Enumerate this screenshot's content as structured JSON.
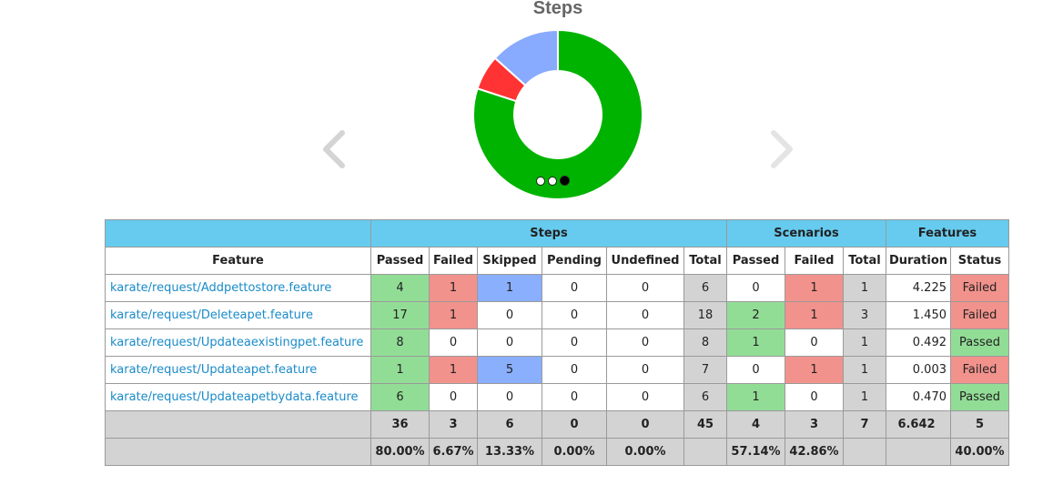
{
  "chart": {
    "title": "Steps",
    "carousel_dots": 3,
    "active_dot": 2
  },
  "chart_data": {
    "type": "pie",
    "title": "Steps",
    "slices": [
      {
        "label": "Passed",
        "value": 36,
        "color": "#00b300"
      },
      {
        "label": "Failed",
        "value": 3,
        "color": "#ff3333"
      },
      {
        "label": "Skipped",
        "value": 6,
        "color": "#88aaff"
      }
    ]
  },
  "table": {
    "groups": {
      "steps": "Steps",
      "scenarios": "Scenarios",
      "features": "Features"
    },
    "headers": {
      "feature": "Feature",
      "passed": "Passed",
      "failed": "Failed",
      "skipped": "Skipped",
      "pending": "Pending",
      "undefined": "Undefined",
      "total": "Total",
      "sc_passed": "Passed",
      "sc_failed": "Failed",
      "sc_total": "Total",
      "duration": "Duration",
      "status": "Status"
    },
    "rows": [
      {
        "feature": "karate/request/Addpettostore.feature",
        "passed": "4",
        "failed": "1",
        "skipped": "1",
        "pending": "0",
        "undefined": "0",
        "total": "6",
        "sc_passed": "0",
        "sc_failed": "1",
        "sc_total": "1",
        "duration": "4.225",
        "status": "Failed"
      },
      {
        "feature": "karate/request/Deleteapet.feature",
        "passed": "17",
        "failed": "1",
        "skipped": "0",
        "pending": "0",
        "undefined": "0",
        "total": "18",
        "sc_passed": "2",
        "sc_failed": "1",
        "sc_total": "3",
        "duration": "1.450",
        "status": "Failed"
      },
      {
        "feature": "karate/request/Updateaexistingpet.feature",
        "passed": "8",
        "failed": "0",
        "skipped": "0",
        "pending": "0",
        "undefined": "0",
        "total": "8",
        "sc_passed": "1",
        "sc_failed": "0",
        "sc_total": "1",
        "duration": "0.492",
        "status": "Passed"
      },
      {
        "feature": "karate/request/Updateapet.feature",
        "passed": "1",
        "failed": "1",
        "skipped": "5",
        "pending": "0",
        "undefined": "0",
        "total": "7",
        "sc_passed": "0",
        "sc_failed": "1",
        "sc_total": "1",
        "duration": "0.003",
        "status": "Failed"
      },
      {
        "feature": "karate/request/Updateapetbydata.feature",
        "passed": "6",
        "failed": "0",
        "skipped": "0",
        "pending": "0",
        "undefined": "0",
        "total": "6",
        "sc_passed": "1",
        "sc_failed": "0",
        "sc_total": "1",
        "duration": "0.470",
        "status": "Passed"
      }
    ],
    "totals": {
      "passed": "36",
      "failed": "3",
      "skipped": "6",
      "pending": "0",
      "undefined": "0",
      "total": "45",
      "sc_passed": "4",
      "sc_failed": "3",
      "sc_total": "7",
      "duration": "6.642",
      "status": "5"
    },
    "percentages": {
      "passed": "80.00%",
      "failed": "6.67%",
      "skipped": "13.33%",
      "pending": "0.00%",
      "undefined": "0.00%",
      "total": "",
      "sc_passed": "57.14%",
      "sc_failed": "42.86%",
      "sc_total": "",
      "duration": "",
      "status": "40.00%"
    }
  }
}
